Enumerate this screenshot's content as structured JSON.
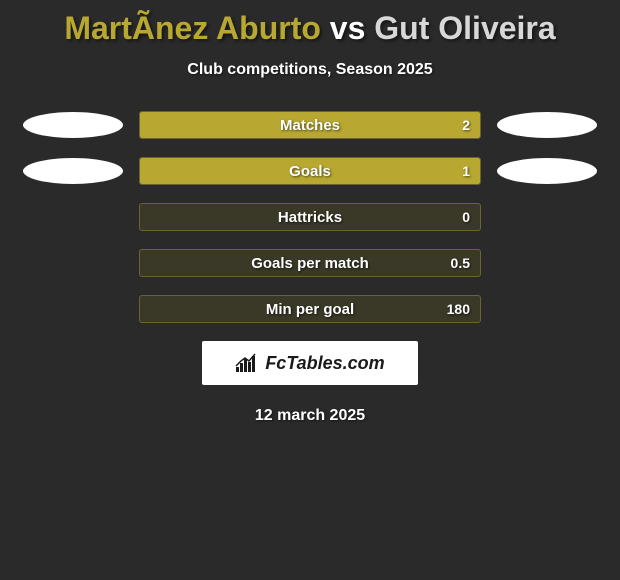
{
  "title": {
    "player1": "MartÃ­nez Aburto",
    "vs": "vs",
    "player2": "Gut Oliveira",
    "color1": "#b8a832",
    "color_vs": "#ffffff",
    "color2": "#d8d8d8"
  },
  "subtitle": "Club competitions, Season 2025",
  "background_color": "#2a2a2a",
  "bar_track_bg": "#3a3826",
  "bar_track_border": "#6b6330",
  "rows": [
    {
      "label": "Matches",
      "value": "2",
      "fill_pct": 100,
      "fill_side": "left",
      "fill_color": "#b8a832",
      "oval_left_color": "#ffffff",
      "oval_right_color": "#ffffff"
    },
    {
      "label": "Goals",
      "value": "1",
      "fill_pct": 100,
      "fill_side": "left",
      "fill_color": "#b8a832",
      "oval_left_color": "#ffffff",
      "oval_right_color": "#ffffff"
    },
    {
      "label": "Hattricks",
      "value": "0",
      "fill_pct": 0,
      "fill_side": "left",
      "fill_color": "#b8a832",
      "oval_left_color": null,
      "oval_right_color": null
    },
    {
      "label": "Goals per match",
      "value": "0.5",
      "fill_pct": 0,
      "fill_side": "left",
      "fill_color": "#b8a832",
      "oval_left_color": null,
      "oval_right_color": null
    },
    {
      "label": "Min per goal",
      "value": "180",
      "fill_pct": 0,
      "fill_side": "left",
      "fill_color": "#b8a832",
      "oval_left_color": null,
      "oval_right_color": null
    }
  ],
  "logo_text": "FcTables.com",
  "logo_bg": "#ffffff",
  "date": "12 march 2025"
}
